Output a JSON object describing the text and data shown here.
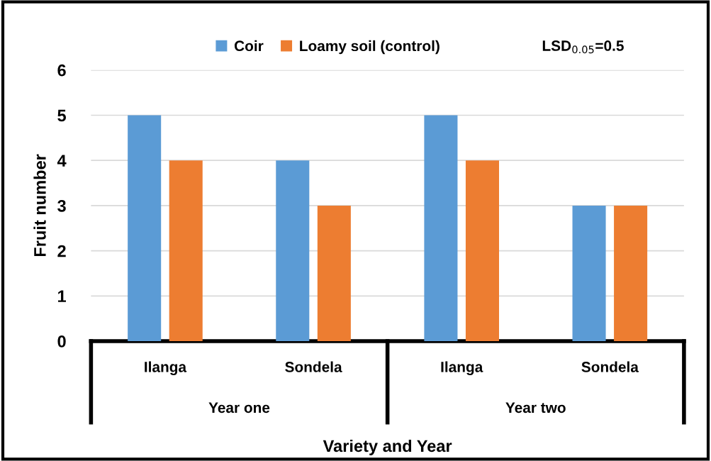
{
  "chart_data": {
    "type": "bar",
    "xlabel": "Variety and Year",
    "ylabel": "Fruit number",
    "categories": [
      "Ilanga",
      "Sondela",
      "Ilanga",
      "Sondela"
    ],
    "series": [
      {
        "name": "Coir",
        "color": "#5b9bd5",
        "values": [
          5,
          4,
          5,
          3
        ]
      },
      {
        "name": "Loamy soil (control)",
        "color": "#ed7d31",
        "values": [
          4,
          3,
          4,
          3
        ]
      }
    ],
    "ylim": [
      0,
      6
    ],
    "yticks": [
      0,
      1,
      2,
      3,
      4,
      5,
      6
    ],
    "grid": "y",
    "legend": "top",
    "annotations": [
      "LSD$_{0.05}$=0.5",
      "Year one",
      "Year two"
    ]
  }
}
